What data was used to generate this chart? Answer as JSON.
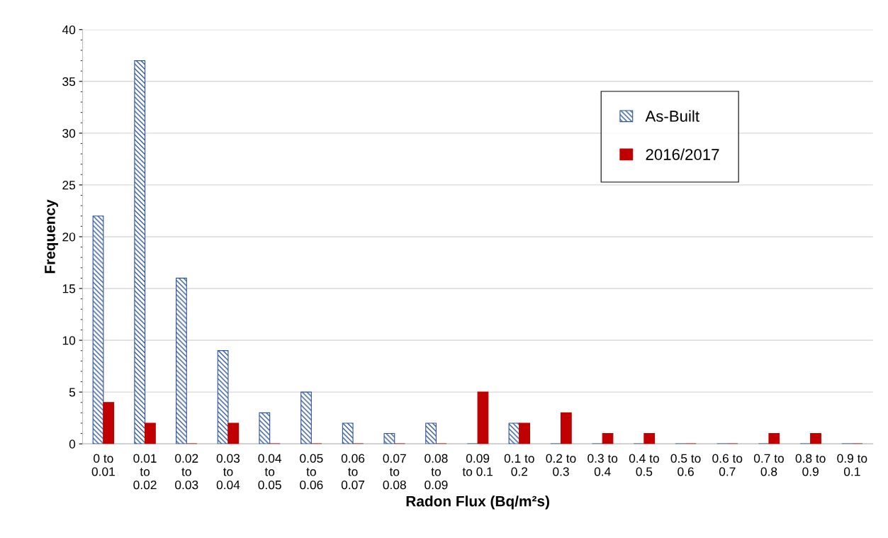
{
  "chart_data": {
    "type": "bar",
    "xlabel": "Radon Flux (Bq/m²s)",
    "ylabel": "Frequency",
    "categories": [
      "0 to 0.01",
      "0.01 to 0.02",
      "0.02 to 0.03",
      "0.03 to 0.04",
      "0.04 to 0.05",
      "0.05 to 0.06",
      "0.06 to 0.07",
      "0.07 to 0.08",
      "0.08 to 0.09",
      "0.09 to 0.1",
      "0.1 to 0.2",
      "0.2 to 0.3",
      "0.3 to 0.4",
      "0.4 to 0.5",
      "0.5 to 0.6",
      "0.6 to 0.7",
      "0.7 to 0.8",
      "0.8 to 0.9",
      "0.9 to 0.1"
    ],
    "series": [
      {
        "name": "As-Built",
        "color": "#2f5597",
        "values": [
          22,
          37,
          16,
          9,
          3,
          5,
          2,
          1,
          2,
          0,
          2,
          0,
          0,
          0,
          0,
          0,
          0,
          0,
          0
        ]
      },
      {
        "name": "2016/2017",
        "color": "#c00000",
        "values": [
          4,
          2,
          0,
          2,
          0,
          0,
          0,
          0,
          0,
          5,
          2,
          3,
          1,
          1,
          0,
          0,
          1,
          1,
          0
        ]
      }
    ],
    "ylim": [
      0,
      40
    ],
    "yticks": [
      0,
      5,
      10,
      15,
      20,
      25,
      30,
      35,
      40
    ],
    "grid": "y",
    "legend": "top right"
  }
}
